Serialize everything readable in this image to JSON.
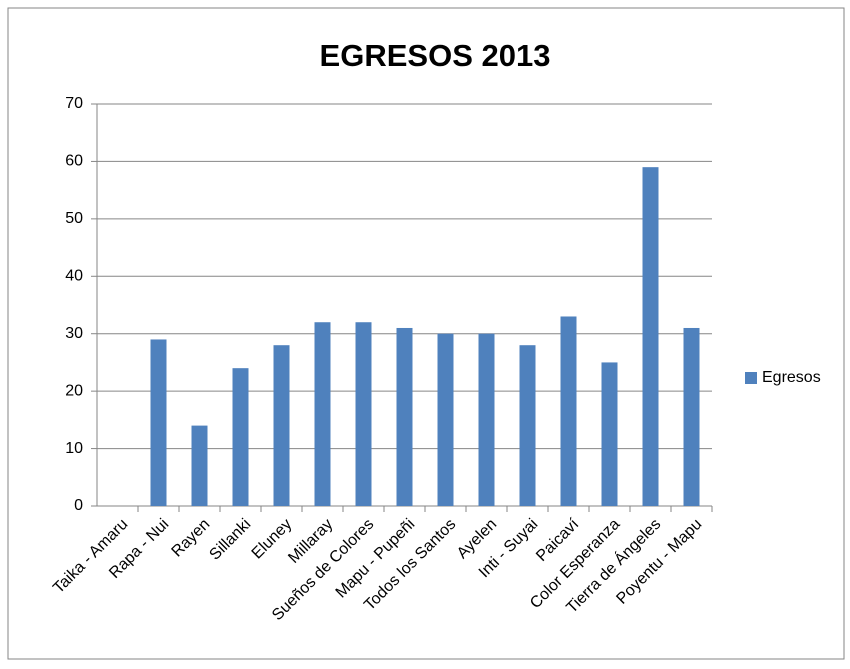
{
  "chart_data": {
    "type": "bar",
    "title": "EGRESOS 2013",
    "categories": [
      "Taika - Amaru",
      "Rapa - Nui",
      "Rayen",
      "Sillanki",
      "Eluney",
      "Millaray",
      "Sueños de Colores",
      "Mapu - Pupeñi",
      "Todos los Santos",
      "Ayelen",
      "Inti - Suyai",
      "Paicaví",
      "Color Esperanza",
      "Tierra de Ángeles",
      "Poyentu - Mapu"
    ],
    "series": [
      {
        "name": "Egresos",
        "color": "#4f81bd",
        "values": [
          0,
          29,
          14,
          24,
          28,
          32,
          32,
          31,
          30,
          30,
          28,
          33,
          25,
          59,
          31
        ]
      }
    ],
    "ylim": [
      0,
      70
    ],
    "yticks": [
      0,
      10,
      20,
      30,
      40,
      50,
      60,
      70
    ],
    "grid": true,
    "legend": "right"
  }
}
